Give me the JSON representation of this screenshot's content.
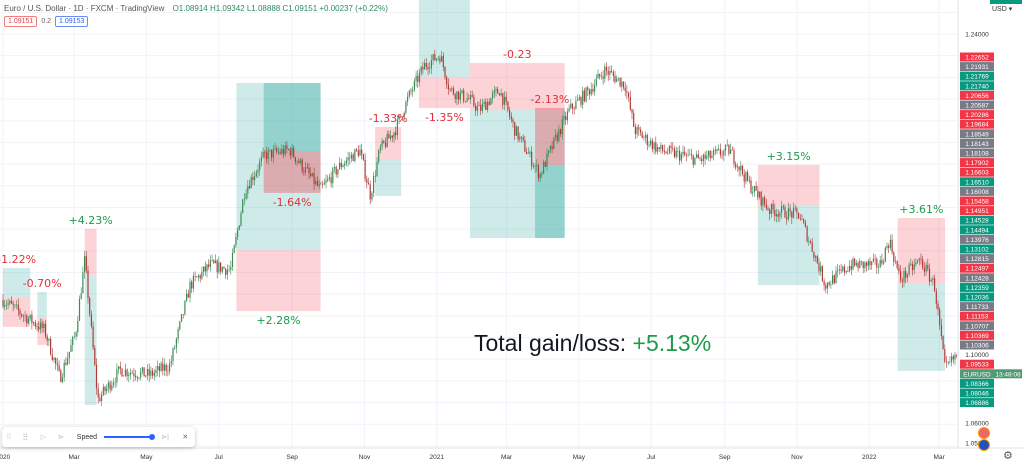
{
  "header": {
    "symbol_title": "Euro / U.S. Dollar · 1D · FXCM · TradingView",
    "ohlc": "O1.08914 H1.09342 L1.08888 C1.09151 +0.00237 (+0.22%)",
    "sell_price": "1.09151",
    "spread": "0.2",
    "buy_price": "1.09153"
  },
  "currency_menu": "USD",
  "colors": {
    "up": "#3d8a55",
    "down": "#b03a3a",
    "profit": "#26a69a",
    "loss": "#f23645",
    "gain_text": "#1e9a4a",
    "loss_text": "#e0303a"
  },
  "total": {
    "label": "Total gain/loss:",
    "value": "+5.13%"
  },
  "replay": {
    "speed_label": "Speed",
    "speed_level": 1.0
  },
  "chart_data": {
    "type": "candlestick",
    "symbol": "EURUSD",
    "ylim": [
      1.045,
      1.258
    ],
    "price_path": [
      [
        "2020-01-01",
        1.1173
      ],
      [
        "2020-01-24",
        1.108
      ],
      [
        "2020-02-05",
        1.1035
      ],
      [
        "2020-02-18",
        1.0813
      ],
      [
        "2020-03-02",
        1.1012
      ],
      [
        "2020-03-10",
        1.1358
      ],
      [
        "2020-03-21",
        1.0712
      ],
      [
        "2020-04-09",
        1.085
      ],
      [
        "2020-05-04",
        1.0827
      ],
      [
        "2020-05-21",
        1.0873
      ],
      [
        "2020-06-07",
        1.1242
      ],
      [
        "2020-06-24",
        1.1334
      ],
      [
        "2020-07-11",
        1.1311
      ],
      [
        "2020-07-23",
        1.168
      ],
      [
        "2020-08-09",
        1.1842
      ],
      [
        "2020-08-30",
        1.1865
      ],
      [
        "2020-09-25",
        1.168
      ],
      [
        "2020-10-12",
        1.1796
      ],
      [
        "2020-10-28",
        1.1865
      ],
      [
        "2020-11-06",
        1.1657
      ],
      [
        "2020-11-14",
        1.1865
      ],
      [
        "2020-11-27",
        1.1957
      ],
      [
        "2020-12-09",
        1.2119
      ],
      [
        "2020-12-22",
        1.2257
      ],
      [
        "2021-01-04",
        1.2303
      ],
      [
        "2021-01-12",
        1.2142
      ],
      [
        "2021-01-29",
        1.2096
      ],
      [
        "2021-02-06",
        1.2049
      ],
      [
        "2021-02-23",
        1.2142
      ],
      [
        "2021-03-08",
        1.1957
      ],
      [
        "2021-03-29",
        1.175
      ],
      [
        "2021-04-11",
        1.1911
      ],
      [
        "2021-04-23",
        1.2049
      ],
      [
        "2021-05-10",
        1.2142
      ],
      [
        "2021-05-23",
        1.2234
      ],
      [
        "2021-06-09",
        1.2165
      ],
      [
        "2021-06-17",
        1.1957
      ],
      [
        "2021-07-08",
        1.1865
      ],
      [
        "2021-08-11",
        1.1819
      ],
      [
        "2021-09-05",
        1.1865
      ],
      [
        "2021-09-22",
        1.1704
      ],
      [
        "2021-10-09",
        1.1588
      ],
      [
        "2021-11-03",
        1.1565
      ],
      [
        "2021-11-16",
        1.1381
      ],
      [
        "2021-11-25",
        1.1242
      ],
      [
        "2021-12-16",
        1.1334
      ],
      [
        "2022-01-10",
        1.1334
      ],
      [
        "2022-01-18",
        1.145
      ],
      [
        "2022-01-27",
        1.1265
      ],
      [
        "2022-02-13",
        1.1358
      ],
      [
        "2022-02-25",
        1.1242
      ],
      [
        "2022-03-06",
        1.085
      ],
      [
        "2022-03-19",
        1.0942
      ],
      [
        "2022-03-31",
        1.0827
      ]
    ],
    "x_ticks": [
      "2020",
      "Mar",
      "May",
      "Jul",
      "Sep",
      "Nov",
      "2021",
      "Mar",
      "May",
      "Jul",
      "Sep",
      "Nov",
      "2022",
      "Mar"
    ],
    "x_tick_dates": [
      "2020-01-01",
      "2020-03-01",
      "2020-05-01",
      "2020-07-01",
      "2020-09-01",
      "2020-11-01",
      "2021-01-01",
      "2021-03-01",
      "2021-05-01",
      "2021-07-01",
      "2021-09-01",
      "2021-11-01",
      "2022-01-01",
      "2022-03-01"
    ],
    "price_labels": [
      {
        "text": "1.24000",
        "kind": "plain"
      },
      {
        "text": "1.22652",
        "kind": "loss"
      },
      {
        "text": "1.21931",
        "kind": "gray"
      },
      {
        "text": "1.21769",
        "kind": "profit"
      },
      {
        "text": "1.21740",
        "kind": "profit"
      },
      {
        "text": "1.20656",
        "kind": "loss"
      },
      {
        "text": "1.20587",
        "kind": "gray"
      },
      {
        "text": "1.20286",
        "kind": "loss"
      },
      {
        "text": "1.19684",
        "kind": "loss"
      },
      {
        "text": "1.18549",
        "kind": "gray"
      },
      {
        "text": "1.18143",
        "kind": "gray"
      },
      {
        "text": "1.18108",
        "kind": "gray"
      },
      {
        "text": "1.17902",
        "kind": "loss"
      },
      {
        "text": "1.16603",
        "kind": "loss"
      },
      {
        "text": "1.16510",
        "kind": "profit"
      },
      {
        "text": "1.16008",
        "kind": "gray"
      },
      {
        "text": "1.15458",
        "kind": "loss"
      },
      {
        "text": "1.14951",
        "kind": "loss"
      },
      {
        "text": "1.14528",
        "kind": "profit"
      },
      {
        "text": "1.14494",
        "kind": "profit"
      },
      {
        "text": "1.13976",
        "kind": "gray"
      },
      {
        "text": "1.13102",
        "kind": "profit"
      },
      {
        "text": "1.12815",
        "kind": "gray"
      },
      {
        "text": "1.12497",
        "kind": "loss"
      },
      {
        "text": "1.12428",
        "kind": "gray"
      },
      {
        "text": "1.12359",
        "kind": "profit"
      },
      {
        "text": "1.12036",
        "kind": "profit"
      },
      {
        "text": "1.11733",
        "kind": "gray"
      },
      {
        "text": "1.11153",
        "kind": "loss"
      },
      {
        "text": "1.10707",
        "kind": "gray"
      },
      {
        "text": "1.10369",
        "kind": "loss"
      },
      {
        "text": "1.10306",
        "kind": "gray"
      },
      {
        "text": "1.10000",
        "kind": "plain"
      },
      {
        "text": "1.09533",
        "kind": "loss"
      },
      {
        "text": "13:48:08",
        "kind": "current",
        "price": 1.09151
      },
      {
        "text": "1.08366",
        "kind": "profit"
      },
      {
        "text": "1.08046",
        "kind": "profit"
      },
      {
        "text": "1.06886",
        "kind": "profit"
      },
      {
        "text": "1.06000",
        "kind": "plain"
      },
      {
        "text": "1.05000",
        "kind": "plain"
      }
    ],
    "current_symbol_tag": "EURUSD",
    "trades": [
      {
        "result": "-1.22%",
        "outcome": "loss",
        "start": "2020-01-01",
        "end": "2020-01-24",
        "top": 1.1321,
        "mid": 1.1187,
        "bottom": 1.1049,
        "upper": "profit",
        "label_pos": "above"
      },
      {
        "result": "-0.70%",
        "outcome": "loss",
        "start": "2020-01-30",
        "end": "2020-02-07",
        "top": 1.121,
        "mid": 1.109,
        "bottom": 1.0966,
        "upper": "profit",
        "label_pos": "above"
      },
      {
        "result": "+4.23%",
        "outcome": "gain",
        "start": "2020-03-10",
        "end": "2020-03-20",
        "top": 1.1501,
        "mid": 1.1288,
        "bottom": 1.0689,
        "upper": "loss",
        "label_pos": "above"
      },
      {
        "result": "+2.28%",
        "outcome": "gain",
        "start": "2020-07-16",
        "end": "2020-09-25",
        "top": 1.2174,
        "mid": 1.1404,
        "bottom": 1.1122,
        "upper": "profit",
        "label_pos": "below"
      },
      {
        "result": "-1.64%",
        "outcome": "loss",
        "start": "2020-08-08",
        "end": "2020-09-25",
        "top": 1.2174,
        "mid": 1.186,
        "bottom": 1.1667,
        "upper": "profit",
        "label_pos": "below",
        "dark": true
      },
      {
        "result": "-1.33%",
        "outcome": "loss",
        "start": "2020-11-10",
        "end": "2020-12-02",
        "top": 1.1971,
        "mid": 1.1819,
        "bottom": 1.1653,
        "upper": "loss",
        "label_pos": "above"
      },
      {
        "result": "-1.35%",
        "outcome": "loss",
        "start": "2020-12-17",
        "end": "2021-01-29",
        "top": 1.2557,
        "mid": 1.2197,
        "bottom": 1.2059,
        "upper": "profit",
        "label_pos": "below"
      },
      {
        "result": "-0.23",
        "outcome": "loss",
        "start": "2021-01-29",
        "end": "2021-04-19",
        "top": 1.2266,
        "mid": 1.2049,
        "bottom": 1.1459,
        "upper": "loss",
        "label_pos": "above"
      },
      {
        "result": "-2.13%",
        "outcome": "loss",
        "start": "2021-03-25",
        "end": "2021-04-19",
        "top": 1.2059,
        "mid": 1.1796,
        "bottom": 1.1459,
        "upper": "loss",
        "label_pos": "above",
        "dark": true
      },
      {
        "result": "+3.15%",
        "outcome": "gain",
        "start": "2021-09-29",
        "end": "2021-11-20",
        "top": 1.1796,
        "mid": 1.1607,
        "bottom": 1.1242,
        "upper": "loss",
        "label_pos": "above"
      },
      {
        "result": "+3.61%",
        "outcome": "gain",
        "start": "2022-01-25",
        "end": "2022-03-06",
        "top": 1.1551,
        "mid": 1.1251,
        "bottom": 1.0846,
        "upper": "loss",
        "label_pos": "above"
      }
    ]
  }
}
